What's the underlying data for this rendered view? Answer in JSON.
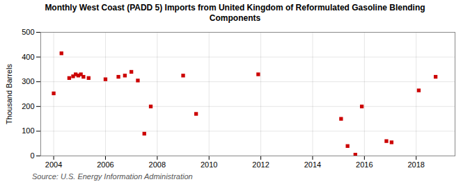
{
  "chart_data": {
    "type": "scatter",
    "title": "Monthly West Coast (PADD 5) Imports from United Kingdom of Reformulated Gasoline Blending\nComponents",
    "ylabel": "Thousand Barrels",
    "source": "Source: U.S. Energy Information Administration",
    "x": [
      2004.0,
      2004.3,
      2004.6,
      2004.75,
      2004.85,
      2004.95,
      2005.05,
      2005.15,
      2005.35,
      2006.0,
      2006.5,
      2006.75,
      2007.0,
      2007.25,
      2007.5,
      2007.75,
      2009.0,
      2009.5,
      2011.9,
      2015.1,
      2015.35,
      2015.65,
      2015.9,
      2016.85,
      2017.05,
      2018.1,
      2018.75
    ],
    "values": [
      253,
      415,
      315,
      322,
      330,
      325,
      330,
      320,
      315,
      310,
      320,
      325,
      340,
      305,
      90,
      200,
      325,
      170,
      330,
      150,
      40,
      5,
      200,
      60,
      55,
      265,
      320
    ],
    "color": "#cc0000",
    "marker": "square",
    "xlim": [
      2003.5,
      2019.5
    ],
    "ylim": [
      0,
      500
    ],
    "xticks": [
      2004,
      2006,
      2008,
      2010,
      2012,
      2014,
      2016,
      2018
    ],
    "yticks": [
      0,
      100,
      200,
      300,
      400,
      500
    ],
    "grid": true
  }
}
